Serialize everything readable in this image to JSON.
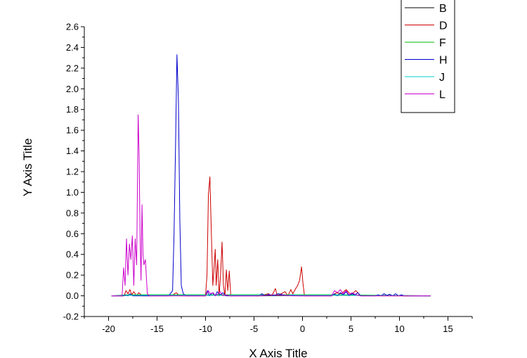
{
  "chart_data": {
    "type": "line",
    "title": "",
    "xlabel": "X Axis Title",
    "ylabel": "Y Axis Title",
    "xlim": [
      -22.5,
      17.5
    ],
    "ylim": [
      -0.2,
      2.6
    ],
    "xticks": [
      "-20",
      "-15",
      "-10",
      "-5",
      "0",
      "5",
      "10",
      "15"
    ],
    "xtick_values": [
      -20,
      -15,
      -10,
      -5,
      0,
      5,
      10,
      15
    ],
    "yticks": [
      "-0.2",
      "0.0",
      "0.2",
      "0.4",
      "0.6",
      "0.8",
      "1.0",
      "1.2",
      "1.4",
      "1.6",
      "1.8",
      "2.0",
      "2.2",
      "2.4",
      "2.6"
    ],
    "ytick_values": [
      -0.2,
      0.0,
      0.2,
      0.4,
      0.6,
      0.8,
      1.0,
      1.2,
      1.4,
      1.6,
      1.8,
      2.0,
      2.2,
      2.4,
      2.6
    ],
    "grid": false,
    "legend_position": "top-right",
    "series": [
      {
        "name": "B",
        "color": "#000000",
        "x": [
          -19.7,
          -18.5,
          -18.0,
          -13.0,
          -9.5,
          -8.0,
          -4.5,
          3.5,
          10.5,
          13.2
        ],
        "y": [
          0.0,
          0.0,
          0.005,
          0.005,
          0.005,
          0.005,
          0.0,
          0.005,
          0.0,
          0.0
        ]
      },
      {
        "name": "D",
        "color": "#cc0000",
        "x": [
          -19.7,
          -18.4,
          -18.2,
          -18.0,
          -17.8,
          -17.6,
          -17.4,
          -17.1,
          -16.9,
          -16.5,
          -13.5,
          -13.2,
          -13.0,
          -12.8,
          -12.6,
          -10.0,
          -9.85,
          -9.7,
          -9.55,
          -9.4,
          -9.25,
          -9.1,
          -9.0,
          -8.9,
          -8.75,
          -8.6,
          -8.45,
          -8.3,
          -8.15,
          -8.0,
          -7.85,
          -7.7,
          -7.55,
          -7.4,
          -4.5,
          -3.5,
          -3.2,
          -3.0,
          -2.8,
          -2.6,
          -1.8,
          -1.5,
          -1.2,
          -1.0,
          -0.7,
          -0.5,
          -0.3,
          -0.1,
          0.05,
          0.2,
          0.4,
          3.0,
          3.5,
          4.0,
          4.5,
          5.0,
          5.5,
          6.0,
          8.0,
          10.5,
          13.2
        ],
        "y": [
          0.0,
          0.0,
          0.05,
          0.02,
          0.06,
          0.01,
          0.04,
          0.0,
          0.03,
          0.0,
          0.0,
          0.02,
          0.03,
          0.01,
          0.0,
          0.0,
          0.2,
          0.98,
          1.15,
          0.6,
          0.1,
          0.3,
          0.45,
          0.1,
          0.35,
          0.0,
          0.2,
          0.52,
          0.1,
          0.0,
          0.25,
          0.05,
          0.24,
          0.0,
          0.0,
          0.02,
          0.0,
          0.03,
          0.07,
          0.0,
          0.04,
          0.0,
          0.06,
          0.02,
          0.07,
          0.1,
          0.15,
          0.28,
          0.12,
          0.0,
          0.0,
          0.0,
          0.03,
          0.02,
          0.06,
          0.01,
          0.05,
          0.0,
          0.0,
          0.0,
          0.0
        ]
      },
      {
        "name": "F",
        "color": "#00bb00",
        "x": [
          -19.7,
          -18.0,
          -13.0,
          -9.5,
          -8.0,
          4.0,
          13.2
        ],
        "y": [
          0.0,
          0.01,
          0.01,
          0.01,
          0.01,
          0.01,
          0.0
        ]
      },
      {
        "name": "H",
        "color": "#0000cc",
        "x": [
          -19.7,
          -18.5,
          -18.3,
          -18.0,
          -17.8,
          -17.5,
          -13.8,
          -13.4,
          -13.25,
          -13.1,
          -12.95,
          -12.8,
          -12.65,
          -12.5,
          -12.3,
          -12.0,
          -10.0,
          -9.8,
          -9.6,
          -9.3,
          -9.0,
          -8.8,
          -8.5,
          -8.2,
          -7.9,
          -7.5,
          -4.5,
          -4.2,
          -3.8,
          -3.5,
          -3.0,
          -2.5,
          -2.0,
          -1.5,
          -1.0,
          -0.5,
          3.0,
          3.3,
          3.6,
          3.9,
          4.2,
          4.5,
          4.8,
          5.1,
          5.4,
          5.7,
          6.0,
          7.5,
          7.8,
          8.1,
          8.4,
          8.7,
          9.0,
          9.3,
          9.6,
          9.9,
          10.2,
          10.5,
          10.8,
          13.2
        ],
        "y": [
          0.0,
          0.0,
          0.01,
          0.0,
          0.02,
          0.0,
          0.0,
          0.05,
          0.6,
          1.4,
          2.33,
          1.9,
          0.75,
          0.1,
          0.02,
          0.0,
          0.0,
          0.05,
          0.0,
          0.03,
          0.0,
          0.04,
          0.01,
          0.03,
          0.0,
          0.0,
          0.0,
          0.02,
          0.0,
          0.015,
          0.0,
          0.02,
          0.01,
          0.0,
          0.01,
          0.0,
          0.0,
          0.02,
          0.0,
          0.03,
          0.01,
          0.04,
          0.0,
          0.02,
          0.01,
          0.03,
          0.0,
          0.0,
          0.01,
          0.0,
          0.02,
          0.005,
          0.015,
          0.0,
          0.02,
          0.0,
          0.01,
          0.0,
          0.0,
          0.0
        ]
      },
      {
        "name": "J",
        "color": "#00cccc",
        "x": [
          -19.7,
          -18.0,
          -13.0,
          -9.5,
          4.0,
          13.2
        ],
        "y": [
          0.0,
          0.005,
          0.005,
          0.005,
          0.005,
          0.0
        ]
      },
      {
        "name": "L",
        "color": "#cc00cc",
        "x": [
          -19.7,
          -18.6,
          -18.45,
          -18.3,
          -18.15,
          -18.0,
          -17.85,
          -17.7,
          -17.55,
          -17.4,
          -17.25,
          -17.1,
          -16.95,
          -16.85,
          -16.75,
          -16.65,
          -16.55,
          -16.45,
          -16.35,
          -16.2,
          -16.0,
          -15.8,
          -14.0,
          -10.0,
          -9.7,
          -9.5,
          -9.2,
          -9.0,
          -8.7,
          -8.5,
          -8.2,
          -8.0,
          -7.5,
          -4.5,
          -3.0,
          -1.0,
          3.0,
          3.3,
          3.6,
          3.9,
          4.2,
          4.5,
          4.8,
          5.1,
          5.5,
          6.0,
          13.2
        ],
        "y": [
          0.0,
          0.0,
          0.27,
          0.1,
          0.55,
          0.2,
          0.5,
          0.35,
          0.58,
          0.1,
          0.55,
          0.3,
          1.75,
          1.35,
          0.6,
          0.15,
          0.88,
          0.4,
          0.3,
          0.35,
          0.02,
          0.0,
          0.0,
          0.0,
          0.05,
          0.02,
          0.03,
          0.0,
          0.02,
          0.04,
          0.0,
          0.01,
          0.0,
          0.0,
          0.01,
          0.0,
          0.0,
          0.05,
          0.03,
          0.06,
          0.02,
          0.05,
          0.01,
          0.03,
          0.01,
          0.0,
          0.0
        ]
      }
    ]
  }
}
